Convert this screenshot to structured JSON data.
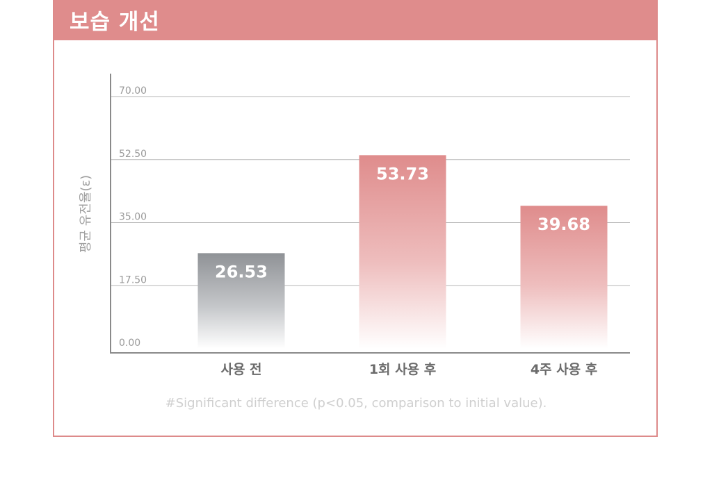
{
  "header": {
    "title": "보습 개선"
  },
  "chart_data": {
    "type": "bar",
    "categories": [
      "사용 전",
      "1회 사용 후",
      "4주 사용 후"
    ],
    "values": [
      26.53,
      53.73,
      39.68
    ],
    "value_labels": [
      "26.53",
      "53.73",
      "39.68"
    ],
    "yticks": [
      "0.00",
      "17.50",
      "35.00",
      "52.50",
      "70.00"
    ],
    "ylabel": "평균 유전율(ε)",
    "ylim": [
      0,
      70
    ],
    "grid": true,
    "colors": {
      "before": "#8f9296",
      "after": "#df8c8c"
    }
  },
  "footnote": "#Significant difference (p<0.05, comparison to initial value)."
}
